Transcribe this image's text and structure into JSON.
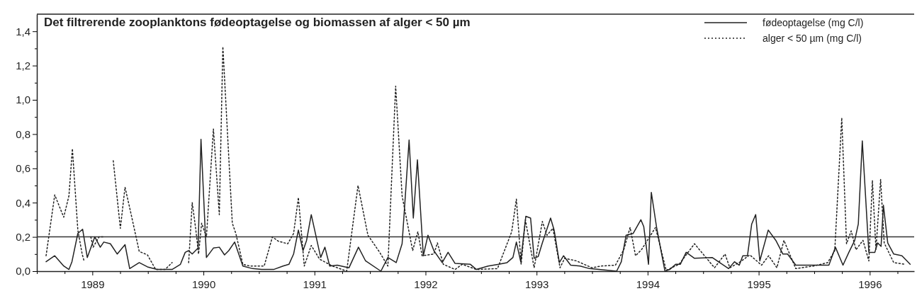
{
  "chart_data": {
    "type": "line",
    "title": "Det filtrerende zooplanktons fødeoptagelse og biomassen af alger < 50 µm",
    "xlim": [
      1989,
      1996.9
    ],
    "ylim": [
      0,
      1.5
    ],
    "xticks": [
      {
        "value": 1989,
        "label": null
      },
      {
        "value": 1989.25,
        "label": null
      },
      {
        "value": 1989.5,
        "label": "1989"
      },
      {
        "value": 1989.75,
        "label": null
      },
      {
        "value": 1990,
        "label": null
      },
      {
        "value": 1990.25,
        "label": null
      },
      {
        "value": 1990.5,
        "label": "1990"
      },
      {
        "value": 1990.75,
        "label": null
      },
      {
        "value": 1991,
        "label": null
      },
      {
        "value": 1991.25,
        "label": null
      },
      {
        "value": 1991.5,
        "label": "1991"
      },
      {
        "value": 1991.75,
        "label": null
      },
      {
        "value": 1992,
        "label": null
      },
      {
        "value": 1992.25,
        "label": null
      },
      {
        "value": 1992.5,
        "label": "1992"
      },
      {
        "value": 1992.75,
        "label": null
      },
      {
        "value": 1993,
        "label": null
      },
      {
        "value": 1993.25,
        "label": null
      },
      {
        "value": 1993.5,
        "label": "1993"
      },
      {
        "value": 1993.75,
        "label": null
      },
      {
        "value": 1994,
        "label": null
      },
      {
        "value": 1994.25,
        "label": null
      },
      {
        "value": 1994.5,
        "label": "1994"
      },
      {
        "value": 1994.75,
        "label": null
      },
      {
        "value": 1995,
        "label": null
      },
      {
        "value": 1995.25,
        "label": null
      },
      {
        "value": 1995.5,
        "label": "1995"
      },
      {
        "value": 1995.75,
        "label": null
      },
      {
        "value": 1996,
        "label": null
      },
      {
        "value": 1996.25,
        "label": null
      },
      {
        "value": 1996.5,
        "label": "1996"
      },
      {
        "value": 1996.75,
        "label": null
      }
    ],
    "yticks": [
      {
        "value": 0,
        "label": "0,0"
      },
      {
        "value": 0.1,
        "label": null
      },
      {
        "value": 0.2,
        "label": "0,2"
      },
      {
        "value": 0.3,
        "label": null
      },
      {
        "value": 0.4,
        "label": "0,4"
      },
      {
        "value": 0.5,
        "label": null
      },
      {
        "value": 0.6,
        "label": "0,6"
      },
      {
        "value": 0.7,
        "label": null
      },
      {
        "value": 0.8,
        "label": "0,8"
      },
      {
        "value": 0.9,
        "label": null
      },
      {
        "value": 1,
        "label": "1,0"
      },
      {
        "value": 1.1,
        "label": null
      },
      {
        "value": 1.2,
        "label": "1,2"
      },
      {
        "value": 1.3,
        "label": null
      },
      {
        "value": 1.4,
        "label": "1,4"
      }
    ],
    "grid": false,
    "legend": "top right",
    "marker": "none",
    "ref_lines": [
      {
        "axis": "y",
        "value": 0.2,
        "color": "#333333"
      }
    ],
    "series": [
      {
        "name": "fødeoptagelse (mg C/l)",
        "color": "#222222",
        "line_style": "solid",
        "x": [
          1989.083,
          1989.161,
          1989.242,
          1989.289,
          1989.316,
          1989.369,
          1989.412,
          1989.454,
          1989.522,
          1989.571,
          1989.603,
          1989.662,
          1989.724,
          1989.794,
          1989.836,
          1989.922,
          1989.996,
          1990.081,
          1990.155,
          1990.218,
          1990.293,
          1990.336,
          1990.367,
          1990.399,
          1990.452,
          1990.478,
          1990.527,
          1990.59,
          1990.643,
          1990.69,
          1990.728,
          1990.781,
          1990.855,
          1990.941,
          1991.025,
          1991.132,
          1991.217,
          1991.27,
          1991.312,
          1991.355,
          1991.397,
          1991.429,
          1991.471,
          1991.556,
          1991.594,
          1991.637,
          1991.705,
          1991.811,
          1991.896,
          1991.96,
          1992.098,
          1992.161,
          1992.236,
          1992.289,
          1992.352,
          1992.39,
          1992.427,
          1992.48,
          1992.522,
          1992.575,
          1992.65,
          1992.703,
          1992.766,
          1992.904,
          1992.958,
          1993.064,
          1993.159,
          1993.234,
          1993.287,
          1993.318,
          1993.357,
          1993.403,
          1993.446,
          1993.478,
          1993.514,
          1993.552,
          1993.626,
          1993.658,
          1993.705,
          1993.743,
          1993.807,
          1993.892,
          1993.976,
          1994.062,
          1994.221,
          1994.263,
          1994.306,
          1994.369,
          1994.439,
          1994.465,
          1994.508,
          1994.533,
          1994.582,
          1994.656,
          1994.699,
          1994.752,
          1994.794,
          1994.847,
          1994.922,
          1995.081,
          1995.229,
          1995.282,
          1995.325,
          1995.357,
          1995.399,
          1995.437,
          1995.473,
          1995.51,
          1995.586,
          1995.654,
          1995.718,
          1995.76,
          1995.834,
          1995.93,
          1996.132,
          1996.191,
          1996.259,
          1996.312,
          1996.365,
          1996.397,
          1996.433,
          1996.492,
          1996.546,
          1996.571,
          1996.602,
          1996.623,
          1996.662,
          1996.716,
          1996.79,
          1996.864
        ],
        "values": [
          0.055,
          0.09,
          0.03,
          0.01,
          0.055,
          0.22,
          0.245,
          0.08,
          0.2,
          0.14,
          0.17,
          0.16,
          0.1,
          0.155,
          0.015,
          0.05,
          0.025,
          0.01,
          0.01,
          0.01,
          0.04,
          0.11,
          0.12,
          0.1,
          0.135,
          0.77,
          0.08,
          0.135,
          0.14,
          0.095,
          0.12,
          0.17,
          0.03,
          0.015,
          0.01,
          0.01,
          0.03,
          0.04,
          0.1,
          0.24,
          0.12,
          0.18,
          0.33,
          0.08,
          0.14,
          0.03,
          0.035,
          0.02,
          0.14,
          0.06,
          0,
          0.08,
          0.05,
          0.16,
          0.765,
          0.31,
          0.65,
          0.09,
          0.21,
          0.12,
          0.05,
          0.11,
          0.045,
          0.04,
          0.01,
          0.03,
          0.04,
          0.05,
          0.08,
          0.17,
          0.055,
          0.32,
          0.31,
          0.075,
          0.085,
          0.165,
          0.31,
          0.24,
          0.05,
          0.09,
          0.035,
          0.03,
          0.015,
          0.01,
          0,
          0.055,
          0.21,
          0.22,
          0.3,
          0.26,
          0.04,
          0.46,
          0.25,
          0,
          0.01,
          0.04,
          0.04,
          0.11,
          0.075,
          0.08,
          0.015,
          0.055,
          0.035,
          0.09,
          0.09,
          0.275,
          0.33,
          0.06,
          0.24,
          0.18,
          0.1,
          0.1,
          0.035,
          0.035,
          0.035,
          0.14,
          0.035,
          0.11,
          0.18,
          0.275,
          0.76,
          0.11,
          0.11,
          0.165,
          0.145,
          0.385,
          0.165,
          0.1,
          0.09,
          0.04
        ]
      },
      {
        "name": "alger < 50 µm (mg C/l)",
        "color": "#222222",
        "line_style": "dotted",
        "x": [
          1989.083,
          1989.161,
          1989.242,
          1989.289,
          1989.32,
          1989.369,
          1989.408,
          1989.423,
          1989.437,
          1989.486,
          1989.507,
          1989.56,
          1989.613,
          1989.65,
          1989.688,
          1989.752,
          1989.794,
          1989.836,
          1989.922,
          1989.996,
          1990.07,
          1990.155,
          1990.218,
          1990.257,
          1990.303,
          1990.367,
          1990.399,
          1990.431,
          1990.456,
          1990.484,
          1990.527,
          1990.59,
          1990.643,
          1990.675,
          1990.76,
          1990.792,
          1990.855,
          1990.919,
          1991.047,
          1991.121,
          1991.174,
          1991.259,
          1991.312,
          1991.355,
          1991.408,
          1991.471,
          1991.546,
          1991.662,
          1991.79,
          1991.892,
          1991.981,
          1992.087,
          1992.161,
          1992.231,
          1992.289,
          1992.384,
          1992.431,
          1992.469,
          1992.575,
          1992.607,
          1992.66,
          1992.766,
          1992.83,
          1992.958,
          1993.148,
          1993.276,
          1993.318,
          1993.361,
          1993.399,
          1993.478,
          1993.552,
          1993.594,
          1993.647,
          1993.711,
          1993.753,
          1993.859,
          1993.998,
          1994.083,
          1994.21,
          1994.285,
          1994.342,
          1994.391,
          1994.444,
          1994.508,
          1994.571,
          1994.667,
          1994.783,
          1994.922,
          1995.102,
          1995.197,
          1995.24,
          1995.335,
          1995.42,
          1995.526,
          1995.59,
          1995.664,
          1995.727,
          1995.834,
          1995.994,
          1996.121,
          1996.185,
          1996.248,
          1996.291,
          1996.333,
          1996.376,
          1996.439,
          1996.492,
          1996.524,
          1996.556,
          1996.598,
          1996.63,
          1996.716,
          1996.823
        ],
        "values": [
          0.09,
          0.445,
          0.315,
          0.44,
          0.715,
          0.24,
          0.1,
          0.065,
          null,
          0.2,
          0.14,
          0.2,
          0.2,
          null,
          0.645,
          0.25,
          0.49,
          0.37,
          0.115,
          0.095,
          0.01,
          0.01,
          0.05,
          null,
          null,
          0.05,
          0.4,
          0.245,
          0.1,
          0.28,
          0.2,
          0.83,
          0.33,
          1.31,
          0.28,
          0.22,
          0.04,
          0.03,
          0.03,
          0.2,
          0.175,
          0.16,
          0.22,
          0.43,
          0.03,
          0.15,
          0.07,
          0.03,
          0,
          0.5,
          0.21,
          0.11,
          0.03,
          1.08,
          0.44,
          0.12,
          0.23,
          0.09,
          0.1,
          0.165,
          0.04,
          0.01,
          0.04,
          0.01,
          0.015,
          0.23,
          0.42,
          0.04,
          0.3,
          0.02,
          0.29,
          0.21,
          0.25,
          0.02,
          0.075,
          0.06,
          0.02,
          0.03,
          0.035,
          0.125,
          0.255,
          0.09,
          0.125,
          0.19,
          0.255,
          0.005,
          0.04,
          0.16,
          0.02,
          0.1,
          0.02,
          0.055,
          0.095,
          0.035,
          0.09,
          0.02,
          0.18,
          0.015,
          0.03,
          0.05,
          0.12,
          0.895,
          0.16,
          0.235,
          0.125,
          0.18,
          0.06,
          0.53,
          0.125,
          0.535,
          0.165,
          0.05,
          0.04
        ]
      }
    ]
  }
}
